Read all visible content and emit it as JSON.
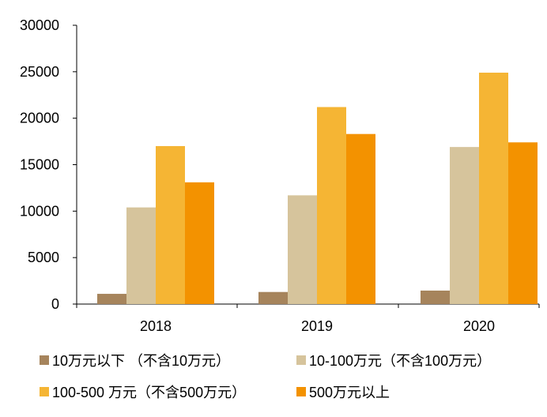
{
  "chart_data": {
    "type": "bar",
    "categories": [
      "2018",
      "2019",
      "2020"
    ],
    "ylim": [
      0,
      30000
    ],
    "yticks": [
      0,
      5000,
      10000,
      15000,
      20000,
      25000,
      30000
    ],
    "grid": false,
    "legend_position": "bottom",
    "series": [
      {
        "name": "10万元以下 （不含10万元）",
        "color": "#A6845C",
        "values": [
          1100,
          1300,
          1450
        ]
      },
      {
        "name": "10-100万元（不含100万元）",
        "color": "#D6C49C",
        "values": [
          10400,
          11700,
          16900
        ]
      },
      {
        "name": "100-500 万元（不含500万元）",
        "color": "#F5B534",
        "values": [
          17000,
          21200,
          24900
        ]
      },
      {
        "name": "500万元以上",
        "color": "#F39200",
        "values": [
          13100,
          18300,
          17400
        ]
      }
    ]
  }
}
